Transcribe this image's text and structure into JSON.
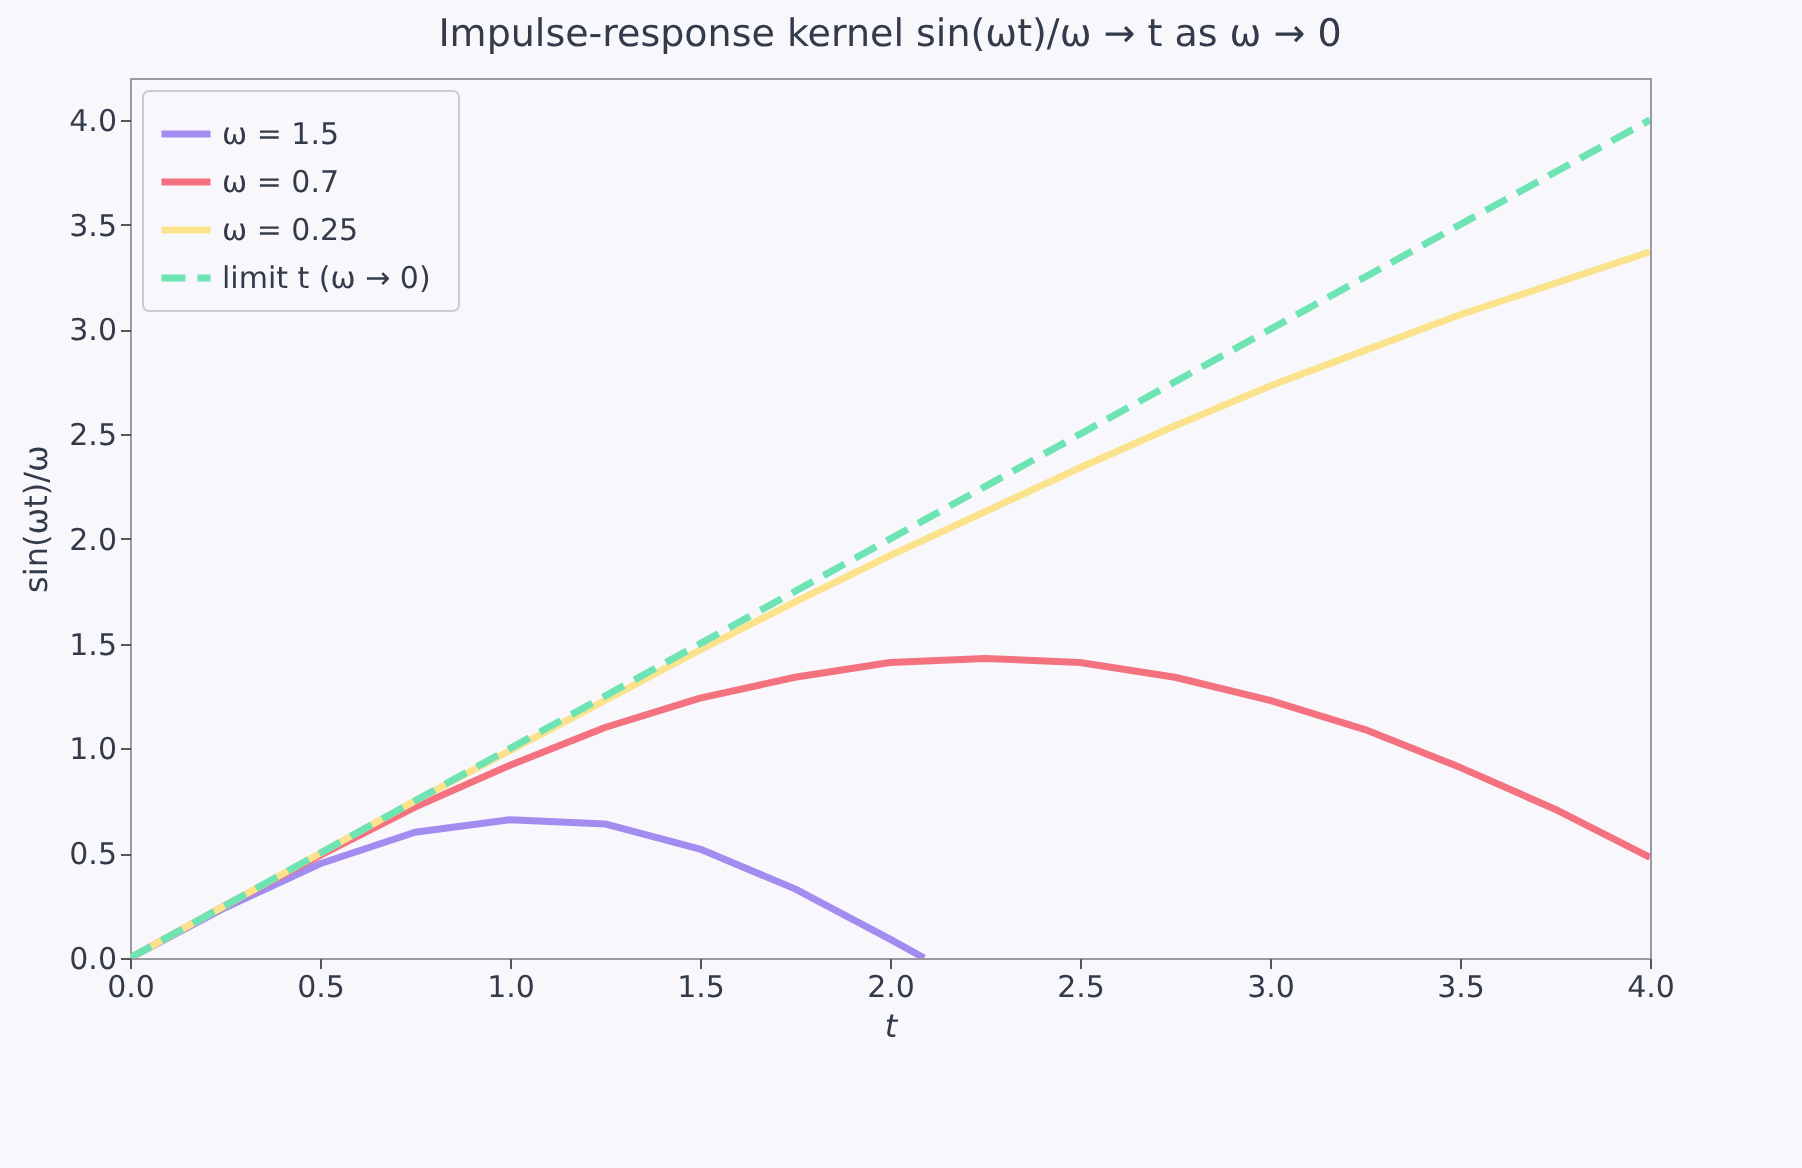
{
  "chart_data": {
    "type": "line",
    "title": "Impulse-response kernel sin(ωt)/ω → t as ω → 0",
    "xlabel": "t",
    "ylabel": "sin(ωt)/ω",
    "xlim": [
      0,
      4
    ],
    "ylim": [
      0,
      4.2
    ],
    "xticks": [
      {
        "value": 0,
        "label": "0.0"
      },
      0.5,
      {
        "value": 1,
        "label": "1.0"
      },
      1.5,
      {
        "value": 2,
        "label": "2.0"
      },
      2.5,
      {
        "value": 3,
        "label": "3.0"
      },
      3.5,
      {
        "value": 4,
        "label": "4.0"
      }
    ],
    "yticks": [
      {
        "value": 0,
        "label": "0.0"
      },
      0.5,
      {
        "value": 1,
        "label": "1.0"
      },
      1.5,
      {
        "value": 2,
        "label": "2.0"
      },
      2.5,
      {
        "value": 3,
        "label": "3.0"
      },
      3.5,
      {
        "value": 4,
        "label": "4.0"
      }
    ],
    "legend": "top left",
    "grid": false,
    "series": [
      {
        "name": "ω = 1.5",
        "color": "#a28cf0",
        "line_style": "solid",
        "x": [
          0,
          0.25,
          0.5,
          0.75,
          1,
          1.25,
          1.5,
          1.75,
          2,
          2.09
        ],
        "values": [
          0,
          0.24,
          0.45,
          0.6,
          0.66,
          0.64,
          0.52,
          0.33,
          0.09,
          0
        ]
      },
      {
        "name": "ω = 0.7",
        "color": "#f4727f",
        "line_style": "solid",
        "x": [
          0,
          0.25,
          0.5,
          0.75,
          1,
          1.25,
          1.5,
          1.75,
          2,
          2.25,
          2.5,
          2.75,
          3,
          3.25,
          3.5,
          3.75,
          4
        ],
        "values": [
          0,
          0.25,
          0.49,
          0.72,
          0.92,
          1.1,
          1.24,
          1.34,
          1.41,
          1.43,
          1.41,
          1.34,
          1.23,
          1.09,
          0.91,
          0.71,
          0.48
        ]
      },
      {
        "name": "ω = 0.25",
        "color": "#fbe38e",
        "line_style": "solid",
        "x": [
          0,
          0.25,
          0.5,
          0.75,
          1,
          1.25,
          1.5,
          1.75,
          2,
          2.25,
          2.5,
          2.75,
          3,
          3.25,
          3.5,
          3.75,
          4
        ],
        "values": [
          0,
          0.25,
          0.5,
          0.75,
          0.99,
          1.23,
          1.47,
          1.7,
          1.92,
          2.13,
          2.34,
          2.54,
          2.73,
          2.9,
          3.07,
          3.22,
          3.37
        ]
      },
      {
        "name": "limit  t (ω → 0)",
        "color": "#6ee3b4",
        "line_style": "dashed",
        "x": [
          0,
          4
        ],
        "values": [
          0,
          4
        ]
      }
    ]
  }
}
